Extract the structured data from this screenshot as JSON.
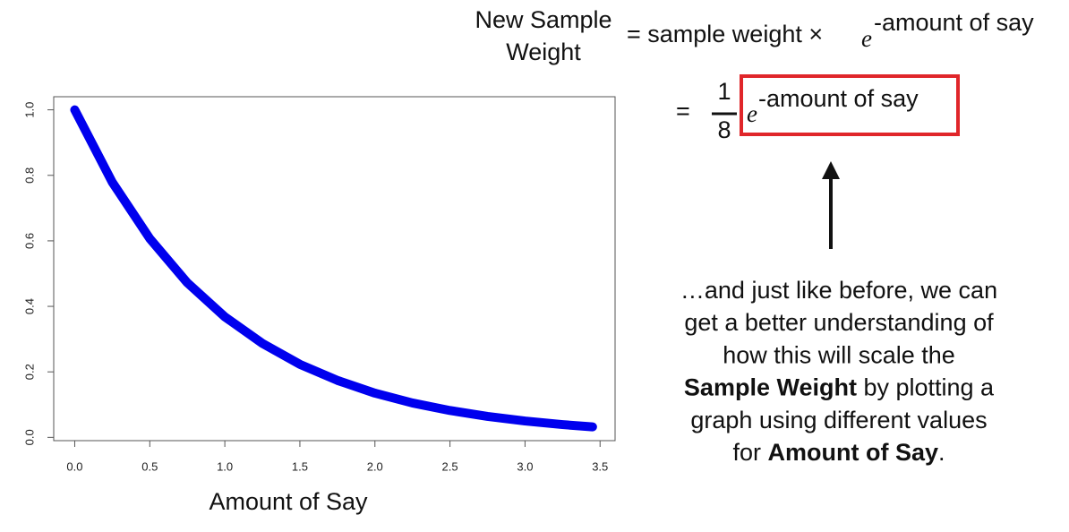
{
  "chart_data": {
    "type": "line",
    "x_label": "Amount of Say",
    "x": [
      0,
      0.25,
      0.5,
      0.75,
      1,
      1.25,
      1.5,
      1.75,
      2,
      2.25,
      2.5,
      2.75,
      3,
      3.25,
      3.45
    ],
    "series": [
      {
        "color": "#0000ee",
        "values": [
          1,
          0.779,
          0.607,
          0.472,
          0.368,
          0.287,
          0.223,
          0.174,
          0.135,
          0.105,
          0.082,
          0.064,
          0.05,
          0.039,
          0.032
        ]
      }
    ],
    "xlim": [
      -0.14,
      3.6
    ],
    "ylim": [
      -0.01,
      1.04
    ],
    "xticks": [
      {
        "value": 0,
        "label": "0.0"
      },
      0.5,
      {
        "value": 1,
        "label": "1.0"
      },
      1.5,
      {
        "value": 2,
        "label": "2.0"
      },
      2.5,
      {
        "value": 3,
        "label": "3.0"
      },
      3.5
    ],
    "yticks": [
      {
        "value": 0,
        "label": "0.0"
      },
      0.2,
      0.4,
      0.6,
      0.8,
      {
        "value": 1,
        "label": "1.0"
      }
    ]
  },
  "equation": {
    "lhs": [
      "New Sample",
      "Weight"
    ],
    "rhs": "= sample weight ×",
    "base": "e",
    "exponent": "-amount of say",
    "eq": "=",
    "numerator": "1",
    "denominator": "8"
  },
  "note": {
    "lines": [
      [
        {
          "text": "…and just like before, we can",
          "bold": false
        }
      ],
      [
        {
          "text": "get a better understanding of",
          "bold": false
        }
      ],
      [
        {
          "text": "how this will scale the",
          "bold": false
        }
      ],
      [
        {
          "text": "Sample Weight",
          "bold": true
        },
        {
          "text": " by plotting a",
          "bold": false
        }
      ],
      [
        {
          "text": "graph using different values",
          "bold": false
        }
      ],
      [
        {
          "text": "for ",
          "bold": false
        },
        {
          "text": "Amount of Say",
          "bold": true
        },
        {
          "text": ".",
          "bold": false
        }
      ]
    ]
  }
}
